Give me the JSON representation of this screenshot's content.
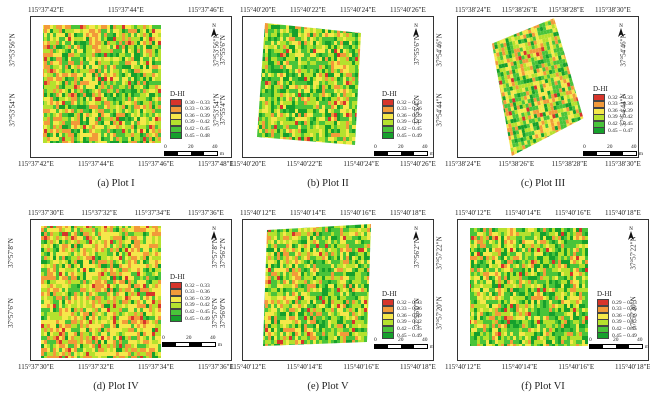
{
  "legend_title": "D-HI",
  "legend_unit": "m",
  "scale_numbers": [
    "0",
    "20",
    "40"
  ],
  "north_label": "N",
  "class_colors": [
    "#d7352b",
    "#f29a3a",
    "#f5e84a",
    "#b5e12e",
    "#49c43a",
    "#16a02c"
  ],
  "panels": [
    {
      "caption": "(a) Plot I",
      "top_coords": [
        "115°37′42″E",
        "115°37′44″E",
        "115°37′46″E"
      ],
      "bottom_coords": [
        "115°37′42″E",
        "115°37′44″E",
        "115°37′46″E",
        "115°37′48″E"
      ],
      "left_coords": [
        "37°53′56″N",
        "37°53′54″N"
      ],
      "right_coords": [
        "37°53′56″N",
        "37°53′54″N"
      ],
      "legend": [
        "0.30 – 0.33",
        "0.33 – 0.36",
        "0.36 – 0.39",
        "0.39 – 0.42",
        "0.42 – 0.45",
        "0.45 – 0.48"
      ]
    },
    {
      "caption": "(b) Plot II",
      "top_coords": [
        "115°40′20″E",
        "115°40′22″E",
        "115°40′24″E",
        "115°40′26″E"
      ],
      "bottom_coords": [
        "115°40′20″E",
        "115°40′22″E",
        "115°40′24″E",
        "115°40′26″E"
      ],
      "left_coords": [
        "37°55′6″N",
        "37°55′4″N"
      ],
      "right_coords": [
        "37°55′6″N",
        "37°55′4″N"
      ],
      "legend": [
        "0.32 – 0.33",
        "0.33 – 0.36",
        "0.36 – 0.39",
        "0.39 – 0.42",
        "0.42 – 0.45",
        "0.45 – 0.49"
      ]
    },
    {
      "caption": "(c) Plot III",
      "top_coords": [
        "115°38′24″E",
        "115°38′26″E",
        "115°38′28″E",
        "115°38′30″E"
      ],
      "bottom_coords": [
        "115°38′24″E",
        "115°38′26″E",
        "115°38′28″E",
        "115°38′30″E"
      ],
      "left_coords": [
        "37°54′46″N",
        "37°54′44″N"
      ],
      "right_coords": [
        "37°54′46″N",
        "37°54′44″N"
      ],
      "legend": [
        "0.32 – 0.33",
        "0.33 – 0.36",
        "0.36 – 0.39",
        "0.39 – 0.42",
        "0.42 – 0.45",
        "0.45 – 0.47"
      ]
    },
    {
      "caption": "(d) Plot IV",
      "top_coords": [
        "115°37′30″E",
        "115°37′32″E",
        "115°37′34″E",
        "115°37′36″E"
      ],
      "bottom_coords": [
        "115°37′30″E",
        "115°37′32″E",
        "115°37′34″E",
        "115°37′36″E"
      ],
      "left_coords": [
        "37°57′8″N",
        "37°57′6″N"
      ],
      "right_coords": [
        "37°57′8″N",
        "37°57′6″N"
      ],
      "legend": [
        "0.32 – 0.33",
        "0.33 – 0.36",
        "0.36 – 0.39",
        "0.39 – 0.42",
        "0.42 – 0.45",
        "0.45 – 0.49"
      ]
    },
    {
      "caption": "(e) Plot V",
      "top_coords": [
        "115°40′12″E",
        "115°40′14″E",
        "115°40′16″E",
        "115°40′18″E"
      ],
      "bottom_coords": [
        "115°40′12″E",
        "115°40′14″E",
        "115°40′16″E",
        "115°40′18″E"
      ],
      "left_coords": [
        "37°56′2″N",
        "37°56′0″N"
      ],
      "right_coords": [
        "37°56′2″N",
        "37°56′0″N"
      ],
      "legend": [
        "0.32 – 0.33",
        "0.33 – 0.36",
        "0.36 – 0.39",
        "0.39 – 0.42",
        "0.42 – 0.45",
        "0.45 – 0.49"
      ]
    },
    {
      "caption": "(f) Plot VI",
      "top_coords": [
        "115°40′12″E",
        "115°40′14″E",
        "115°40′16″E",
        "115°40′18″E"
      ],
      "bottom_coords": [
        "115°40′12″E",
        "115°40′14″E",
        "115°40′16″E",
        "115°40′18″E"
      ],
      "left_coords": [
        "37°57′22″N",
        "37°57′20″N"
      ],
      "right_coords": [
        "37°57′22″N",
        "37°57′20″N"
      ],
      "legend": [
        "0.29 – 0.33",
        "0.33 – 0.36",
        "0.36 – 0.39",
        "0.39 – 0.42",
        "0.42 – 0.45",
        "0.45 – 0.49"
      ]
    }
  ]
}
